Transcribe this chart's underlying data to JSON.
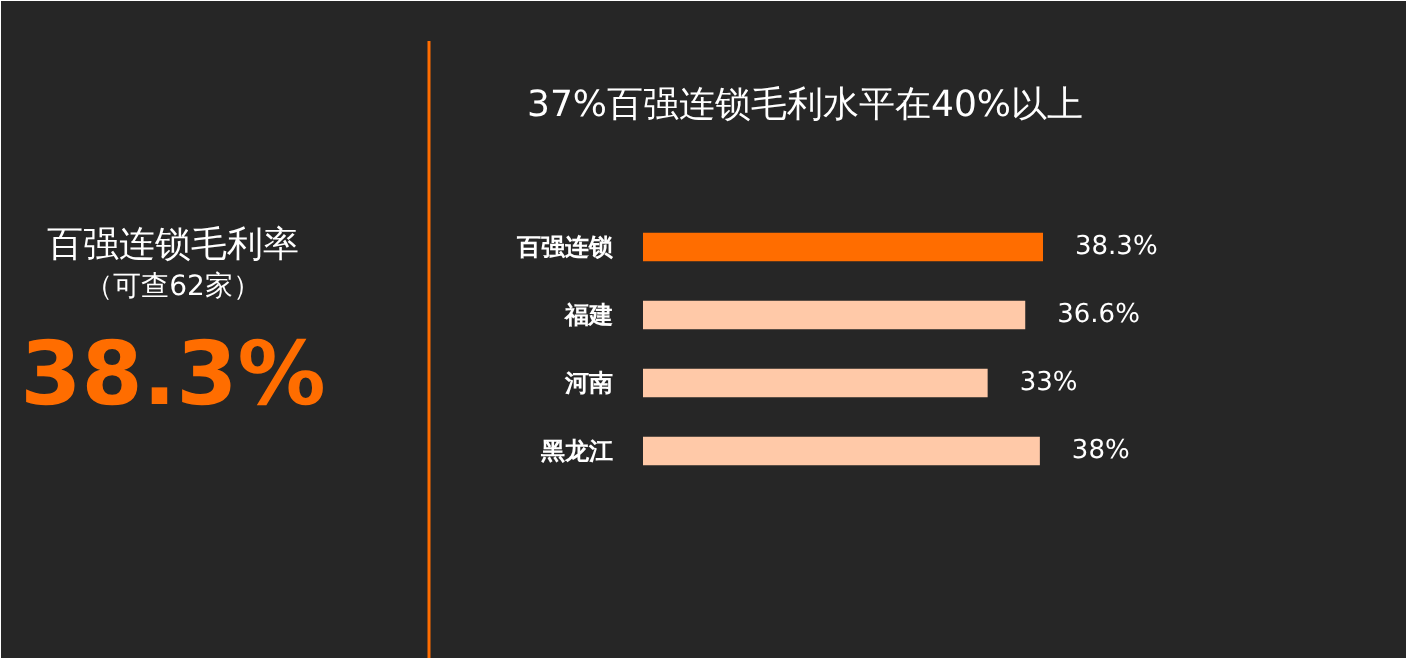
{
  "chart_data": [
    {
      "type": "other",
      "title": "百强连锁毛利率",
      "subtitle": "（可查62家）",
      "annotations": [
        "38.3%"
      ]
    },
    {
      "type": "bar",
      "orientation": "horizontal",
      "title": "37%百强连锁毛利水平在40%以上",
      "categories": [
        "百强连锁",
        "福建",
        "河南",
        "黑龙江"
      ],
      "values": [
        38.3,
        36.6,
        33,
        38
      ],
      "colors": [
        "#ff6d00",
        "#ffc9a8",
        "#ffc9a8",
        "#ffc9a8"
      ],
      "value_labels": [
        "38.3%",
        "36.6%",
        "33%",
        "38%"
      ],
      "grid": false
    }
  ]
}
